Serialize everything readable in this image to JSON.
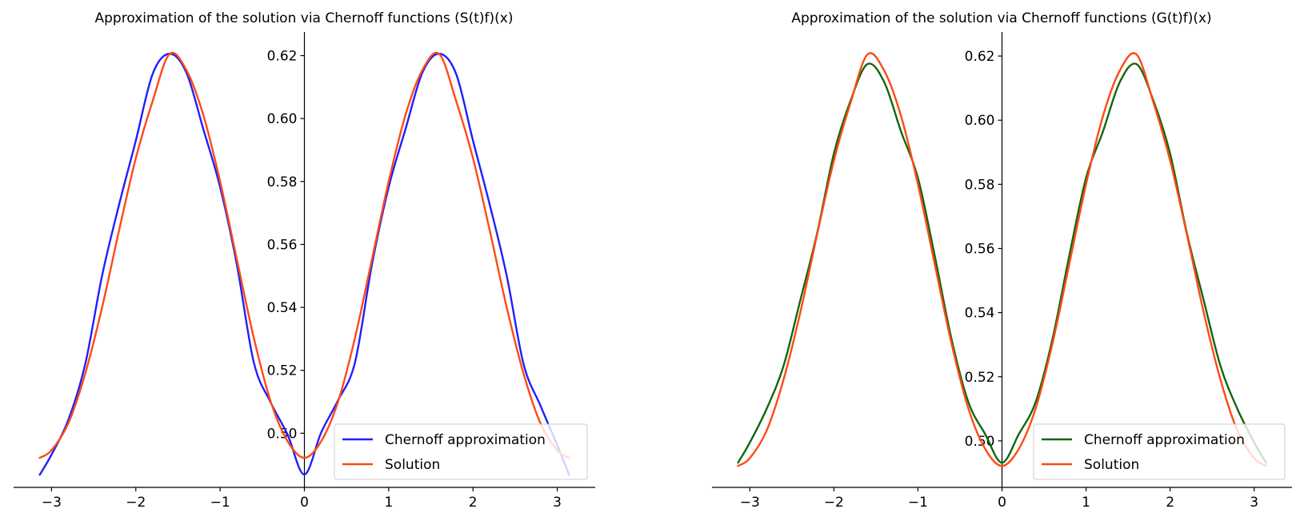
{
  "chart_data": [
    {
      "type": "line",
      "title": "Approximation of the solution via Chernoff functions (S(t)f)(x)",
      "xlabel": "",
      "ylabel": "",
      "xlim": [
        -3.45,
        3.45
      ],
      "ylim": [
        0.4828,
        0.6275
      ],
      "xticks": [
        -3,
        -2,
        -1,
        0,
        1,
        2,
        3
      ],
      "xtick_labels": [
        "−3",
        "−2",
        "−1",
        "0",
        "1",
        "2",
        "3"
      ],
      "yticks": [
        0.5,
        0.52,
        0.54,
        0.56,
        0.58,
        0.6,
        0.62
      ],
      "ytick_labels": [
        "0.50",
        "0.52",
        "0.54",
        "0.56",
        "0.58",
        "0.60",
        "0.62"
      ],
      "spines": "centered at origin",
      "grid": false,
      "legend_position": "lower-right",
      "series": [
        {
          "name": "Chernoff approximation",
          "color": "#1f1fff",
          "x": [
            -3.14,
            -3.0,
            -2.8,
            -2.6,
            -2.4,
            -2.2,
            -2.0,
            -1.8,
            -1.6,
            -1.4,
            -1.2,
            -1.0,
            -0.8,
            -0.6,
            -0.4,
            -0.2,
            0.0,
            0.2,
            0.4,
            0.6,
            0.8,
            1.0,
            1.2,
            1.4,
            1.6,
            1.8,
            2.0,
            2.2,
            2.4,
            2.6,
            2.8,
            3.0,
            3.14
          ],
          "y": [
            0.4868,
            0.4932,
            0.5043,
            0.522,
            0.5501,
            0.5725,
            0.593,
            0.6142,
            0.6206,
            0.6146,
            0.5967,
            0.5782,
            0.5534,
            0.5225,
            0.5098,
            0.4996,
            0.4869,
            0.5003,
            0.5105,
            0.5225,
            0.5534,
            0.5782,
            0.5967,
            0.6146,
            0.6206,
            0.6142,
            0.593,
            0.5725,
            0.5501,
            0.522,
            0.5088,
            0.4962,
            0.4868
          ]
        },
        {
          "name": "Solution",
          "color": "#ff4a14",
          "x": [
            -3.14,
            -3.0,
            -2.8,
            -2.6,
            -2.4,
            -2.2,
            -2.0,
            -1.8,
            -1.6,
            -1.4,
            -1.2,
            -1.0,
            -0.8,
            -0.6,
            -0.4,
            -0.2,
            0.0,
            0.2,
            0.4,
            0.6,
            0.8,
            1.0,
            1.2,
            1.4,
            1.6,
            1.8,
            2.0,
            2.2,
            2.4,
            2.6,
            2.8,
            3.0,
            3.14
          ],
          "y": [
            0.4922,
            0.4946,
            0.5032,
            0.519,
            0.54,
            0.5643,
            0.5874,
            0.6056,
            0.6205,
            0.6154,
            0.6012,
            0.58,
            0.5551,
            0.5303,
            0.5101,
            0.4975,
            0.4922,
            0.4975,
            0.5101,
            0.5303,
            0.5551,
            0.58,
            0.6012,
            0.6154,
            0.6205,
            0.6056,
            0.5874,
            0.5643,
            0.54,
            0.519,
            0.5032,
            0.4946,
            0.4922
          ]
        }
      ]
    },
    {
      "type": "line",
      "title": "Approximation of the solution via Chernoff functions (G(t)f)(x)",
      "xlabel": "",
      "ylabel": "",
      "xlim": [
        -3.45,
        3.45
      ],
      "ylim": [
        0.4855,
        0.6275
      ],
      "xticks": [
        -3,
        -2,
        -1,
        0,
        1,
        2,
        3
      ],
      "xtick_labels": [
        "−3",
        "−2",
        "−1",
        "0",
        "1",
        "2",
        "3"
      ],
      "yticks": [
        0.5,
        0.52,
        0.54,
        0.56,
        0.58,
        0.6,
        0.62
      ],
      "ytick_labels": [
        "0.50",
        "0.52",
        "0.54",
        "0.56",
        "0.58",
        "0.60",
        "0.62"
      ],
      "spines": "centered at origin",
      "grid": false,
      "legend_position": "lower-right",
      "series": [
        {
          "name": "Chernoff approximation",
          "color": "#116611",
          "x": [
            -3.14,
            -3.0,
            -2.8,
            -2.6,
            -2.4,
            -2.2,
            -2.0,
            -1.8,
            -1.6,
            -1.4,
            -1.2,
            -1.0,
            -0.8,
            -0.6,
            -0.4,
            -0.2,
            0.0,
            0.2,
            0.4,
            0.6,
            0.8,
            1.0,
            1.2,
            1.4,
            1.6,
            1.8,
            2.0,
            2.2,
            2.4,
            2.6,
            2.8,
            3.0,
            3.14
          ],
          "y": [
            0.4932,
            0.4995,
            0.51,
            0.5233,
            0.5438,
            0.5647,
            0.5896,
            0.6062,
            0.6175,
            0.6118,
            0.5964,
            0.582,
            0.5577,
            0.5317,
            0.5121,
            0.5021,
            0.4932,
            0.5021,
            0.5121,
            0.5317,
            0.5577,
            0.582,
            0.5964,
            0.6118,
            0.6175,
            0.6062,
            0.5896,
            0.5647,
            0.5438,
            0.5233,
            0.51,
            0.4995,
            0.4932
          ]
        },
        {
          "name": "Solution",
          "color": "#ff4a14",
          "x": [
            -3.14,
            -3.0,
            -2.8,
            -2.6,
            -2.4,
            -2.2,
            -2.0,
            -1.8,
            -1.6,
            -1.4,
            -1.2,
            -1.0,
            -0.8,
            -0.6,
            -0.4,
            -0.2,
            0.0,
            0.2,
            0.4,
            0.6,
            0.8,
            1.0,
            1.2,
            1.4,
            1.6,
            1.8,
            2.0,
            2.2,
            2.4,
            2.6,
            2.8,
            3.0,
            3.14
          ],
          "y": [
            0.4922,
            0.4946,
            0.5032,
            0.519,
            0.54,
            0.5643,
            0.5874,
            0.6056,
            0.6205,
            0.6154,
            0.6012,
            0.58,
            0.5551,
            0.5303,
            0.5101,
            0.4975,
            0.4922,
            0.4975,
            0.5101,
            0.5303,
            0.5551,
            0.58,
            0.6012,
            0.6154,
            0.6205,
            0.6056,
            0.5874,
            0.5643,
            0.54,
            0.519,
            0.5032,
            0.4946,
            0.4922
          ]
        }
      ]
    }
  ]
}
